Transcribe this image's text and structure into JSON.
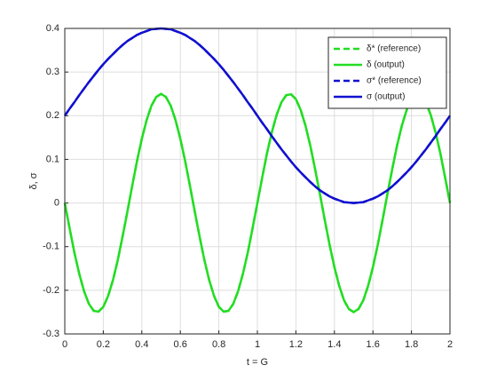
{
  "chart_data": {
    "type": "line",
    "x_label": "t = G",
    "y_label": "δ, σ",
    "x": [
      0,
      0.025,
      0.05,
      0.075,
      0.1,
      0.125,
      0.15,
      0.175,
      0.2,
      0.225,
      0.25,
      0.275,
      0.3,
      0.325,
      0.35,
      0.375,
      0.4,
      0.425,
      0.45,
      0.475,
      0.5,
      0.525,
      0.55,
      0.575,
      0.6,
      0.625,
      0.65,
      0.675,
      0.7,
      0.725,
      0.75,
      0.775,
      0.8,
      0.825,
      0.85,
      0.875,
      0.9,
      0.925,
      0.95,
      0.975,
      1,
      1.025,
      1.05,
      1.075,
      1.1,
      1.125,
      1.15,
      1.175,
      1.2,
      1.225,
      1.25,
      1.275,
      1.3,
      1.325,
      1.35,
      1.375,
      1.4,
      1.425,
      1.45,
      1.475,
      1.5,
      1.525,
      1.55,
      1.575,
      1.6,
      1.625,
      1.65,
      1.675,
      1.7,
      1.725,
      1.75,
      1.775,
      1.8,
      1.825,
      1.85,
      1.875,
      1.9,
      1.925,
      1.95,
      1.975,
      2
    ],
    "series": [
      {
        "name": "δ* (reference)",
        "color": "#22dd22",
        "line_style": "dashed",
        "values": [
          0,
          -0.058,
          -0.114,
          -0.162,
          -0.202,
          -0.231,
          -0.247,
          -0.249,
          -0.238,
          -0.213,
          -0.177,
          -0.131,
          -0.077,
          -0.02,
          0.039,
          0.096,
          0.147,
          0.19,
          0.223,
          0.243,
          0.25,
          0.243,
          0.223,
          0.19,
          0.147,
          0.096,
          0.039,
          -0.02,
          -0.077,
          -0.131,
          -0.177,
          -0.213,
          -0.238,
          -0.249,
          -0.247,
          -0.231,
          -0.202,
          -0.162,
          -0.114,
          -0.058,
          0,
          0.058,
          0.114,
          0.162,
          0.202,
          0.231,
          0.247,
          0.249,
          0.238,
          0.213,
          0.177,
          0.131,
          0.077,
          0.02,
          -0.039,
          -0.096,
          -0.147,
          -0.19,
          -0.223,
          -0.243,
          -0.25,
          -0.243,
          -0.223,
          -0.19,
          -0.147,
          -0.096,
          -0.039,
          0.02,
          0.077,
          0.131,
          0.177,
          0.213,
          0.238,
          0.249,
          0.247,
          0.231,
          0.202,
          0.162,
          0.114,
          0.058,
          0
        ]
      },
      {
        "name": "δ (output)",
        "color": "#22dd22",
        "line_style": "solid",
        "values": [
          0,
          -0.058,
          -0.114,
          -0.162,
          -0.202,
          -0.231,
          -0.247,
          -0.249,
          -0.238,
          -0.213,
          -0.177,
          -0.131,
          -0.077,
          -0.02,
          0.039,
          0.096,
          0.147,
          0.19,
          0.223,
          0.243,
          0.25,
          0.243,
          0.223,
          0.19,
          0.147,
          0.096,
          0.039,
          -0.02,
          -0.077,
          -0.131,
          -0.177,
          -0.213,
          -0.238,
          -0.249,
          -0.247,
          -0.231,
          -0.202,
          -0.162,
          -0.114,
          -0.058,
          0,
          0.058,
          0.114,
          0.162,
          0.202,
          0.231,
          0.247,
          0.249,
          0.238,
          0.213,
          0.177,
          0.131,
          0.077,
          0.02,
          -0.039,
          -0.096,
          -0.147,
          -0.19,
          -0.223,
          -0.243,
          -0.25,
          -0.243,
          -0.223,
          -0.19,
          -0.147,
          -0.096,
          -0.039,
          0.02,
          0.077,
          0.131,
          0.177,
          0.213,
          0.238,
          0.249,
          0.247,
          0.231,
          0.202,
          0.162,
          0.114,
          0.058,
          0
        ]
      },
      {
        "name": "σ* (reference)",
        "color": "#1010d0",
        "line_style": "dashed",
        "values": [
          0.2,
          0.216,
          0.231,
          0.247,
          0.262,
          0.277,
          0.291,
          0.305,
          0.318,
          0.33,
          0.341,
          0.352,
          0.362,
          0.371,
          0.378,
          0.385,
          0.39,
          0.394,
          0.398,
          0.399,
          0.4,
          0.399,
          0.398,
          0.394,
          0.39,
          0.385,
          0.378,
          0.371,
          0.362,
          0.352,
          0.341,
          0.33,
          0.318,
          0.305,
          0.291,
          0.277,
          0.262,
          0.247,
          0.231,
          0.216,
          0.2,
          0.184,
          0.169,
          0.153,
          0.138,
          0.123,
          0.109,
          0.095,
          0.082,
          0.07,
          0.059,
          0.048,
          0.038,
          0.029,
          0.022,
          0.015,
          0.01,
          0.006,
          0.002,
          0.001,
          0,
          0.001,
          0.002,
          0.006,
          0.01,
          0.015,
          0.022,
          0.029,
          0.038,
          0.048,
          0.059,
          0.07,
          0.082,
          0.095,
          0.109,
          0.123,
          0.138,
          0.153,
          0.169,
          0.184,
          0.2
        ]
      },
      {
        "name": "σ (output)",
        "color": "#1010d0",
        "line_style": "solid",
        "values": [
          0.2,
          0.216,
          0.231,
          0.247,
          0.262,
          0.277,
          0.291,
          0.305,
          0.318,
          0.33,
          0.341,
          0.352,
          0.362,
          0.371,
          0.378,
          0.385,
          0.39,
          0.394,
          0.398,
          0.399,
          0.4,
          0.399,
          0.398,
          0.394,
          0.39,
          0.385,
          0.378,
          0.371,
          0.362,
          0.352,
          0.341,
          0.33,
          0.318,
          0.305,
          0.291,
          0.277,
          0.262,
          0.247,
          0.231,
          0.216,
          0.2,
          0.184,
          0.169,
          0.153,
          0.138,
          0.123,
          0.109,
          0.095,
          0.082,
          0.07,
          0.059,
          0.048,
          0.038,
          0.029,
          0.022,
          0.015,
          0.01,
          0.006,
          0.002,
          0.001,
          0,
          0.001,
          0.002,
          0.006,
          0.01,
          0.015,
          0.022,
          0.029,
          0.038,
          0.048,
          0.059,
          0.07,
          0.082,
          0.095,
          0.109,
          0.123,
          0.138,
          0.153,
          0.169,
          0.184,
          0.2
        ]
      }
    ],
    "xlim": [
      0,
      2
    ],
    "xticks": [
      0,
      0.2,
      0.4,
      0.6,
      0.8,
      1,
      1.2,
      1.4,
      1.6,
      1.8,
      2
    ],
    "ylim": [
      -0.3,
      0.4
    ],
    "yticks": [
      -0.3,
      -0.2,
      -0.1,
      0,
      0.1,
      0.2,
      0.3,
      0.4
    ],
    "grid": true,
    "legend": "top-right"
  }
}
